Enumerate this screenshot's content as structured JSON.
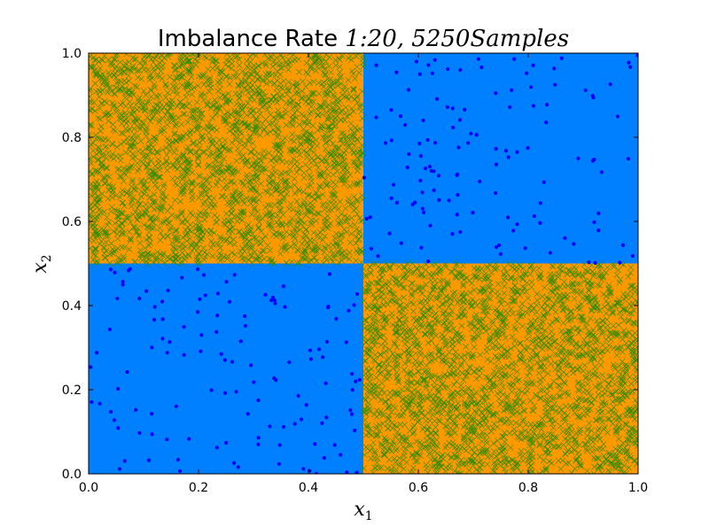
{
  "chart_data": {
    "type": "scatter",
    "title": {
      "prefix": "Imbalance Rate ",
      "math": "1:20, 5250Samples"
    },
    "xlabel": {
      "base": "x",
      "sub": "1"
    },
    "ylabel": {
      "base": "x",
      "sub": "2"
    },
    "xlim": [
      0.0,
      1.0
    ],
    "ylim": [
      0.0,
      1.0
    ],
    "xticks": [
      "0.0",
      "0.2",
      "0.4",
      "0.6",
      "0.8",
      "1.0"
    ],
    "yticks": [
      "0.0",
      "0.2",
      "0.4",
      "0.6",
      "0.8",
      "1.0"
    ],
    "grid": false,
    "regions": [
      {
        "class": "majority",
        "x": [
          0.0,
          0.5
        ],
        "y": [
          0.5,
          1.0
        ]
      },
      {
        "class": "minority",
        "x": [
          0.5,
          1.0
        ],
        "y": [
          0.5,
          1.0
        ]
      },
      {
        "class": "minority",
        "x": [
          0.0,
          0.5
        ],
        "y": [
          0.0,
          0.5
        ]
      },
      {
        "class": "majority",
        "x": [
          0.5,
          1.0
        ],
        "y": [
          0.0,
          0.5
        ]
      }
    ],
    "series": [
      {
        "marker": "x",
        "color": "#2e8b00",
        "count": 5000
      },
      {
        "marker": "o",
        "color": "#0000ff",
        "count": 250
      }
    ],
    "colors": {
      "majority_region": "#ff9900",
      "minority_region": "#0080ff",
      "majority_marker": "#2e8b00",
      "minority_marker": "#0000ff"
    }
  }
}
